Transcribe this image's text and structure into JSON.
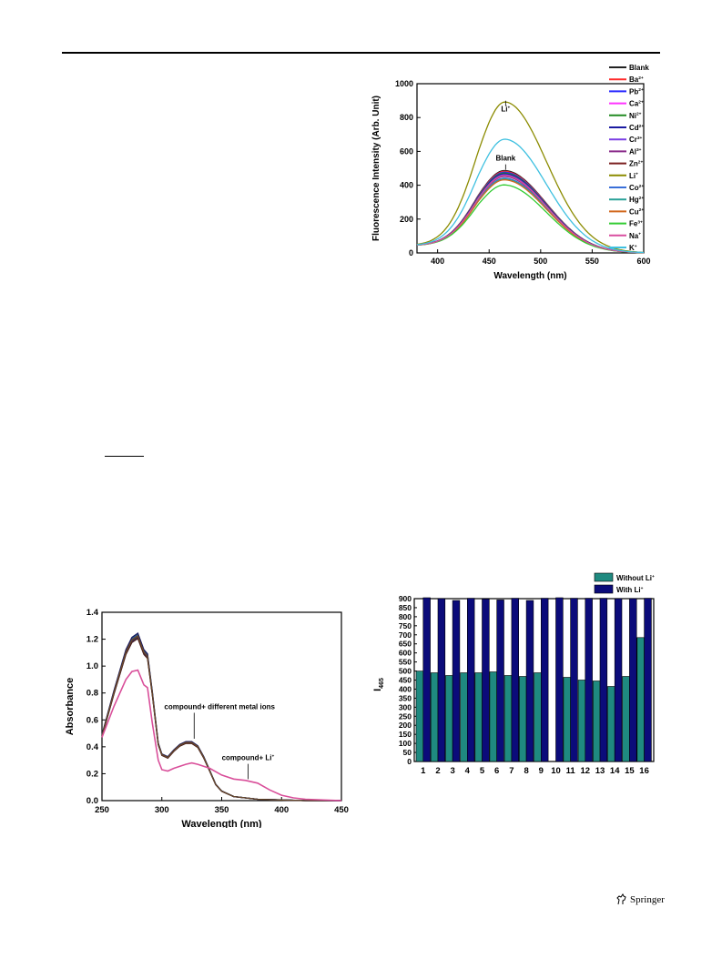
{
  "footer": {
    "publisher": "Springer",
    "logo_icon": "springer-horse-icon"
  },
  "chart_data": [
    {
      "type": "line",
      "xlabel": "Wavelength (nm)",
      "ylabel": "Fluorescence Intensity (Arb. Unit)",
      "xlim": [
        380,
        600
      ],
      "ylim": [
        0,
        1000
      ],
      "xticks": [
        400,
        450,
        500,
        550,
        600
      ],
      "yticks": [
        0,
        200,
        400,
        600,
        800,
        1000
      ],
      "legend_position": "right",
      "annotations": [
        {
          "text": "Li",
          "sup": "+",
          "x": 466,
          "y": 835
        },
        {
          "text": "Blank",
          "x": 466,
          "y": 545
        }
      ],
      "series": [
        {
          "name": "Blank",
          "sup": "",
          "color": "#222222",
          "peak": 500
        },
        {
          "name": "Ba",
          "sup": "2+",
          "color": "#ff2a2a",
          "peak": 495
        },
        {
          "name": "Pb",
          "sup": "2+",
          "color": "#2a2aff",
          "peak": 490
        },
        {
          "name": "Ca",
          "sup": "2+",
          "color": "#ff33ff",
          "peak": 470
        },
        {
          "name": "Ni",
          "sup": "2+",
          "color": "#228b22",
          "peak": 485
        },
        {
          "name": "Cd",
          "sup": "2+",
          "color": "#1a1aa0",
          "peak": 480
        },
        {
          "name": "Cr",
          "sup": "3+",
          "color": "#7b3fe4",
          "peak": 475
        },
        {
          "name": "Al",
          "sup": "3+",
          "color": "#8a2b8a",
          "peak": 465
        },
        {
          "name": "Zn",
          "sup": "2+",
          "color": "#7a1f1f",
          "peak": 470
        },
        {
          "name": "Li",
          "sup": "+",
          "color": "#8b8b00",
          "peak": 905
        },
        {
          "name": "Co",
          "sup": "2+",
          "color": "#3a6fd8",
          "peak": 455
        },
        {
          "name": "Hg",
          "sup": "2+",
          "color": "#2aa198",
          "peak": 450
        },
        {
          "name": "Cu",
          "sup": "2+",
          "color": "#d2691e",
          "peak": 445
        },
        {
          "name": "Fe",
          "sup": "3+",
          "color": "#33cc33",
          "peak": 415
        },
        {
          "name": "Na",
          "sup": "+",
          "color": "#d94fa0",
          "peak": 470
        },
        {
          "name": "K",
          "sup": "+",
          "color": "#3ec0e0",
          "peak": 685
        }
      ]
    },
    {
      "type": "line",
      "xlabel": "Wavelength (nm)",
      "ylabel": "Absorbance",
      "xlim": [
        250,
        450
      ],
      "ylim": [
        0,
        1.4
      ],
      "xticks": [
        250,
        300,
        350,
        400,
        450
      ],
      "yticks": [
        0.0,
        0.2,
        0.4,
        0.6,
        0.8,
        1.0,
        1.2,
        1.4
      ],
      "annotations": [
        {
          "text": "compound+ different metal ions",
          "x": 327,
          "y": 0.68
        },
        {
          "text": "compound+ Li",
          "sup": "+",
          "x": 372,
          "y": 0.3
        }
      ],
      "series": [
        {
          "label": "compound+ different metal ions",
          "color": "#2b2b2b",
          "x": [
            250,
            260,
            270,
            275,
            280,
            285,
            288,
            292,
            297,
            300,
            305,
            310,
            315,
            320,
            325,
            330,
            335,
            340,
            345,
            350,
            360,
            380,
            400,
            420,
            450
          ],
          "y": [
            0.48,
            0.8,
            1.1,
            1.19,
            1.22,
            1.1,
            1.07,
            0.8,
            0.42,
            0.34,
            0.32,
            0.37,
            0.41,
            0.43,
            0.43,
            0.4,
            0.32,
            0.22,
            0.12,
            0.07,
            0.03,
            0.01,
            0.005,
            0.0,
            0.0
          ]
        },
        {
          "label": "compound+ Li",
          "color": "#d94f9a",
          "x": [
            250,
            260,
            270,
            275,
            280,
            285,
            288,
            292,
            297,
            300,
            305,
            310,
            320,
            325,
            330,
            340,
            350,
            360,
            370,
            380,
            390,
            400,
            410,
            420,
            450
          ],
          "y": [
            0.47,
            0.7,
            0.9,
            0.96,
            0.97,
            0.86,
            0.84,
            0.58,
            0.3,
            0.23,
            0.22,
            0.24,
            0.27,
            0.28,
            0.27,
            0.24,
            0.19,
            0.16,
            0.15,
            0.13,
            0.08,
            0.04,
            0.02,
            0.01,
            0.0
          ]
        }
      ]
    },
    {
      "type": "bar",
      "ylabel": "I",
      "ylabel_sub": "465",
      "categories": [
        "1",
        "2",
        "3",
        "4",
        "5",
        "6",
        "7",
        "8",
        "9",
        "10",
        "11",
        "12",
        "13",
        "14",
        "15",
        "16"
      ],
      "ylim": [
        0,
        900
      ],
      "yticks": [
        0,
        50,
        100,
        150,
        200,
        250,
        300,
        350,
        400,
        450,
        500,
        550,
        600,
        650,
        700,
        750,
        800,
        850,
        900
      ],
      "legend_position": "top-right",
      "series": [
        {
          "name": "Without Li",
          "sup": "+",
          "color": "#1f8a80",
          "values": [
            500,
            490,
            475,
            490,
            490,
            495,
            475,
            470,
            490,
            0,
            465,
            450,
            445,
            415,
            470,
            685
          ]
        },
        {
          "name": "With Li",
          "sup": "+",
          "color": "#0b0b7a",
          "values": [
            905,
            900,
            890,
            902,
            898,
            893,
            902,
            890,
            902,
            905,
            902,
            902,
            902,
            900,
            900,
            902
          ]
        }
      ]
    }
  ]
}
